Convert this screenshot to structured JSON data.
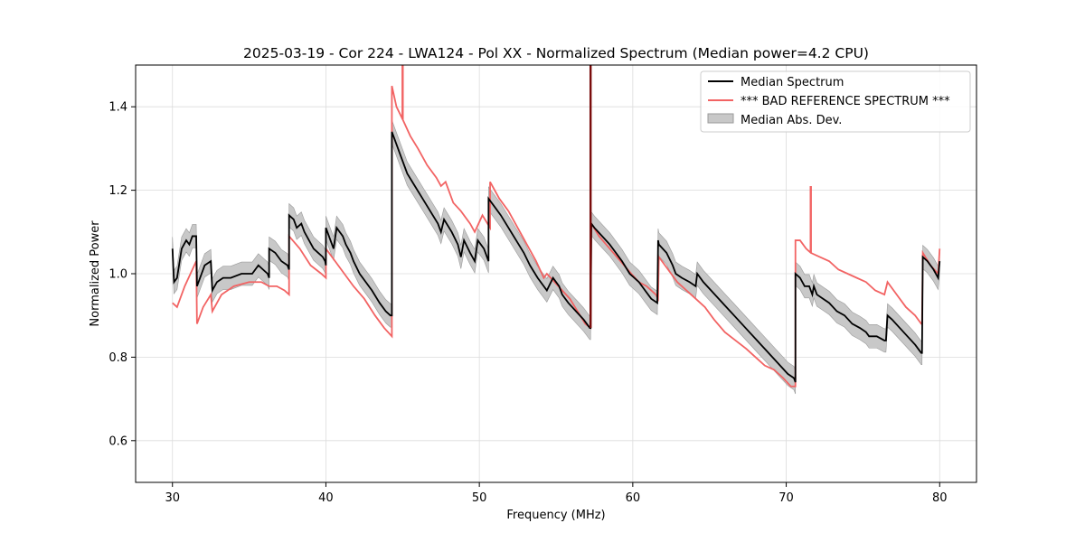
{
  "chart_data": {
    "type": "line",
    "title": "2025-03-19 - Cor 224 - LWA124 - Pol XX - Normalized Spectrum (Median power=4.2 CPU)",
    "xlabel": "Frequency (MHz)",
    "ylabel": "Normalized Power",
    "xlim": [
      27.6,
      82.4
    ],
    "ylim": [
      0.5,
      1.5
    ],
    "xticks": [
      30,
      40,
      50,
      60,
      70,
      80
    ],
    "yticks": [
      0.6,
      0.8,
      1.0,
      1.2,
      1.4
    ],
    "xtick_labels": [
      "30",
      "40",
      "50",
      "60",
      "70",
      "80"
    ],
    "ytick_labels": [
      "0.6",
      "0.8",
      "1.0",
      "1.2",
      "1.4"
    ],
    "grid": true,
    "legend_position": "top-right",
    "colors": {
      "median": "#000000",
      "reference": "#f26363",
      "mad_fill": "#c8c8c8",
      "mad_edge": "#9a9a9a",
      "overlap": "#7a0c0c"
    },
    "series": [
      {
        "name": "Median Spectrum",
        "style": "line",
        "x": [
          30.0,
          30.1,
          30.3,
          30.6,
          30.9,
          31.1,
          31.3,
          31.55,
          31.6,
          31.6,
          31.9,
          32.1,
          32.5,
          32.6,
          32.6,
          32.9,
          33.3,
          33.8,
          34.5,
          35.2,
          35.6,
          35.9,
          36.2,
          36.3,
          36.3,
          36.7,
          37.1,
          37.5,
          37.6,
          37.6,
          37.9,
          38.1,
          38.4,
          38.6,
          38.9,
          39.2,
          39.5,
          39.8,
          39.95,
          40.0,
          40.0,
          40.3,
          40.5,
          40.7,
          41.1,
          41.3,
          41.6,
          41.8,
          42.2,
          42.6,
          43.0,
          43.5,
          43.9,
          44.2,
          44.3,
          44.3,
          44.5,
          44.9,
          45.3,
          45.8,
          46.3,
          46.8,
          47.3,
          47.5,
          47.7,
          48.2,
          48.6,
          48.8,
          49.0,
          49.4,
          49.7,
          49.9,
          50.3,
          50.6,
          50.6,
          51.0,
          51.4,
          51.9,
          52.4,
          52.9,
          53.3,
          53.8,
          54.2,
          54.4,
          54.8,
          55.2,
          55.4,
          55.8,
          56.3,
          56.8,
          57.2,
          57.25,
          57.3,
          57.5,
          58.0,
          58.5,
          58.9,
          59.3,
          59.8,
          60.1,
          60.4,
          60.8,
          61.2,
          61.6,
          61.65,
          61.7,
          62.2,
          62.6,
          62.8,
          63.2,
          63.7,
          64.1,
          64.2,
          64.6,
          65.1,
          65.6,
          66.1,
          66.6,
          67.1,
          67.6,
          68.1,
          68.6,
          69.1,
          69.6,
          70.1,
          70.5,
          70.6,
          70.6,
          70.9,
          71.2,
          71.5,
          71.7,
          71.8,
          72.0,
          72.4,
          72.8,
          73.3,
          73.8,
          74.3,
          74.8,
          75.2,
          75.4,
          75.5,
          75.9,
          76.4,
          76.5,
          76.6,
          76.9,
          77.4,
          77.9,
          78.4,
          78.8,
          78.85,
          78.9,
          79.2,
          79.6,
          79.9,
          80.0
        ],
        "values": [
          1.06,
          0.98,
          0.99,
          1.06,
          1.08,
          1.07,
          1.09,
          1.09,
          0.97,
          0.97,
          1.0,
          1.02,
          1.03,
          0.96,
          0.96,
          0.98,
          0.99,
          0.99,
          1.0,
          1.0,
          1.02,
          1.01,
          1.0,
          0.99,
          1.06,
          1.05,
          1.03,
          1.02,
          1.01,
          1.14,
          1.13,
          1.11,
          1.12,
          1.1,
          1.08,
          1.06,
          1.05,
          1.04,
          1.03,
          1.02,
          1.11,
          1.08,
          1.06,
          1.11,
          1.09,
          1.07,
          1.05,
          1.03,
          1.0,
          0.98,
          0.96,
          0.93,
          0.91,
          0.9,
          0.9,
          1.34,
          1.32,
          1.28,
          1.24,
          1.21,
          1.18,
          1.15,
          1.12,
          1.1,
          1.13,
          1.1,
          1.07,
          1.04,
          1.08,
          1.05,
          1.03,
          1.08,
          1.06,
          1.03,
          1.18,
          1.16,
          1.14,
          1.11,
          1.08,
          1.05,
          1.02,
          0.99,
          0.97,
          0.96,
          0.99,
          0.97,
          0.95,
          0.93,
          0.91,
          0.89,
          0.87,
          0.87,
          1.12,
          1.11,
          1.09,
          1.07,
          1.05,
          1.03,
          1.0,
          0.99,
          0.98,
          0.96,
          0.94,
          0.93,
          1.08,
          1.07,
          1.05,
          1.02,
          1.0,
          0.99,
          0.98,
          0.97,
          1.0,
          0.98,
          0.96,
          0.94,
          0.92,
          0.9,
          0.88,
          0.86,
          0.84,
          0.82,
          0.8,
          0.78,
          0.76,
          0.75,
          0.74,
          1.0,
          0.99,
          0.97,
          0.97,
          0.95,
          0.97,
          0.95,
          0.94,
          0.93,
          0.91,
          0.9,
          0.88,
          0.87,
          0.86,
          0.85,
          0.85,
          0.85,
          0.84,
          0.84,
          0.9,
          0.89,
          0.87,
          0.85,
          0.83,
          0.81,
          0.81,
          1.04,
          1.03,
          1.01,
          0.99,
          1.03
        ]
      },
      {
        "name": "*** BAD REFERENCE SPECTRUM ***",
        "style": "line",
        "x": [
          30.0,
          30.3,
          30.8,
          31.3,
          31.55,
          31.6,
          31.6,
          32.0,
          32.5,
          32.6,
          32.6,
          33.2,
          34.0,
          35.0,
          35.8,
          36.3,
          36.3,
          36.8,
          37.3,
          37.6,
          37.6,
          38.3,
          39.0,
          39.7,
          40.0,
          40.0,
          40.6,
          41.2,
          41.8,
          42.5,
          43.2,
          43.8,
          44.3,
          44.3,
          44.6,
          45.0,
          45.5,
          46.0,
          46.6,
          47.2,
          47.5,
          47.8,
          48.3,
          48.8,
          49.4,
          49.7,
          50.2,
          50.7,
          50.7,
          51.3,
          51.9,
          52.5,
          53.1,
          53.7,
          54.2,
          54.4,
          54.9,
          55.4,
          55.9,
          56.4,
          56.9,
          57.25,
          57.3,
          57.8,
          58.5,
          59.2,
          59.9,
          60.4,
          60.9,
          61.5,
          61.65,
          61.7,
          62.3,
          62.9,
          63.5,
          64.1,
          64.7,
          65.3,
          66.0,
          66.7,
          67.4,
          68.0,
          68.6,
          69.2,
          69.8,
          70.3,
          70.6,
          70.6,
          70.9,
          71.3,
          71.6,
          72.2,
          72.8,
          73.4,
          74.0,
          74.6,
          75.2,
          75.8,
          76.4,
          76.6,
          77.2,
          77.8,
          78.4,
          78.8,
          78.85,
          78.9,
          79.4,
          79.9,
          80.0
        ],
        "values": [
          0.93,
          0.92,
          0.97,
          1.01,
          1.03,
          0.88,
          0.88,
          0.92,
          0.95,
          0.91,
          0.91,
          0.95,
          0.97,
          0.98,
          0.98,
          0.97,
          0.97,
          0.97,
          0.96,
          0.95,
          1.09,
          1.06,
          1.02,
          1.0,
          0.99,
          1.06,
          1.03,
          1.0,
          0.97,
          0.94,
          0.9,
          0.87,
          0.85,
          1.45,
          1.4,
          1.37,
          1.33,
          1.3,
          1.26,
          1.23,
          1.21,
          1.22,
          1.17,
          1.15,
          1.12,
          1.1,
          1.14,
          1.11,
          1.22,
          1.18,
          1.15,
          1.11,
          1.07,
          1.03,
          0.99,
          1.0,
          0.98,
          0.96,
          0.94,
          0.91,
          0.88,
          0.87,
          1.12,
          1.09,
          1.06,
          1.03,
          1.0,
          0.98,
          0.97,
          0.95,
          0.94,
          1.04,
          1.01,
          0.98,
          0.96,
          0.94,
          0.92,
          0.89,
          0.86,
          0.84,
          0.82,
          0.8,
          0.78,
          0.77,
          0.75,
          0.73,
          0.73,
          1.08,
          1.08,
          1.06,
          1.05,
          1.04,
          1.03,
          1.01,
          1.0,
          0.99,
          0.98,
          0.96,
          0.95,
          0.98,
          0.95,
          0.92,
          0.9,
          0.88,
          0.88,
          1.05,
          1.02,
          1.0,
          1.06
        ]
      },
      {
        "name": "Median Abs. Dev.",
        "style": "band",
        "band_width": 0.028
      }
    ],
    "annotations": [
      {
        "type": "spike",
        "series": "*** BAD REFERENCE SPECTRUM ***",
        "x": 45.0,
        "from": 1.37,
        "to": 1.5
      },
      {
        "type": "spike",
        "series": "Median Spectrum",
        "x": 57.25,
        "from": 0.87,
        "to": 1.5
      },
      {
        "type": "spike",
        "series": "*** BAD REFERENCE SPECTRUM ***",
        "x": 71.6,
        "from": 1.05,
        "to": 1.21
      }
    ]
  }
}
